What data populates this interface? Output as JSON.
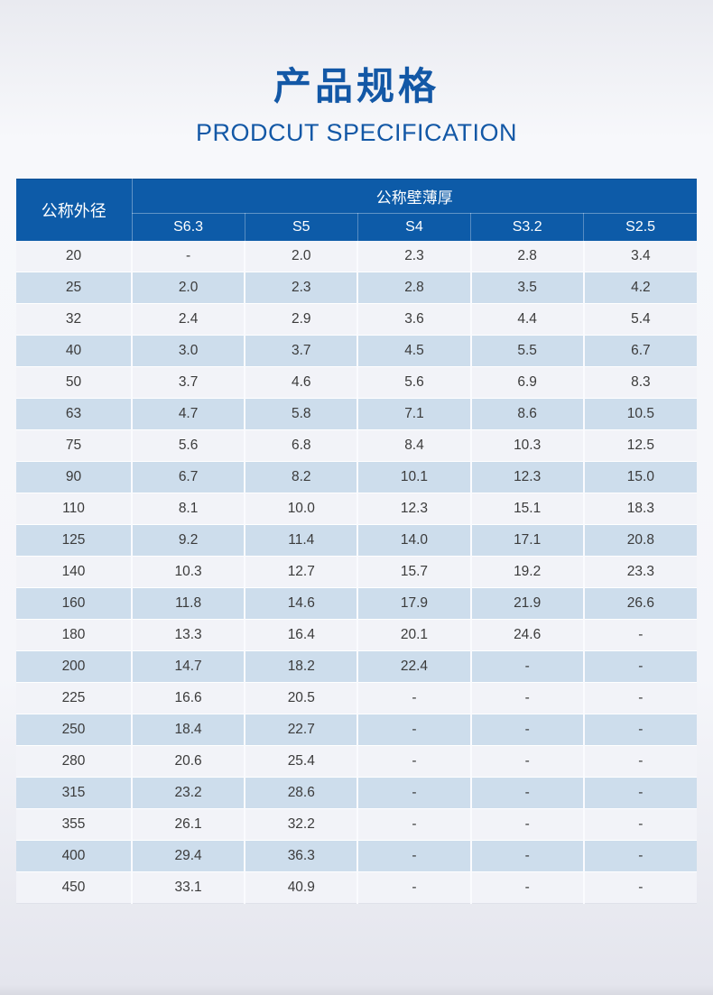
{
  "page": {
    "title": "产品规格",
    "subtitle": "PRODCUT SPECIFICATION"
  },
  "colors": {
    "title_blue": "#1358a6",
    "header_blue": "#0d5ba8",
    "header_text": "#ffffff",
    "row_light": "#f2f3f8",
    "row_alt_blue": "#cdddec",
    "cell_text": "#3b3b3b",
    "background_top": "#e9eaf0",
    "background_bottom": "#e4e5ed"
  },
  "table": {
    "corner_header": "公称外径",
    "group_header": "公称壁薄厚",
    "columns": [
      "S6.3",
      "S5",
      "S4",
      "S3.2",
      "S2.5"
    ],
    "rows": [
      {
        "diameter": "20",
        "values": [
          "-",
          "2.0",
          "2.3",
          "2.8",
          "3.4"
        ]
      },
      {
        "diameter": "25",
        "values": [
          "2.0",
          "2.3",
          "2.8",
          "3.5",
          "4.2"
        ]
      },
      {
        "diameter": "32",
        "values": [
          "2.4",
          "2.9",
          "3.6",
          "4.4",
          "5.4"
        ]
      },
      {
        "diameter": "40",
        "values": [
          "3.0",
          "3.7",
          "4.5",
          "5.5",
          "6.7"
        ]
      },
      {
        "diameter": "50",
        "values": [
          "3.7",
          "4.6",
          "5.6",
          "6.9",
          "8.3"
        ]
      },
      {
        "diameter": "63",
        "values": [
          "4.7",
          "5.8",
          "7.1",
          "8.6",
          "10.5"
        ]
      },
      {
        "diameter": "75",
        "values": [
          "5.6",
          "6.8",
          "8.4",
          "10.3",
          "12.5"
        ]
      },
      {
        "diameter": "90",
        "values": [
          "6.7",
          "8.2",
          "10.1",
          "12.3",
          "15.0"
        ]
      },
      {
        "diameter": "110",
        "values": [
          "8.1",
          "10.0",
          "12.3",
          "15.1",
          "18.3"
        ]
      },
      {
        "diameter": "125",
        "values": [
          "9.2",
          "11.4",
          "14.0",
          "17.1",
          "20.8"
        ]
      },
      {
        "diameter": "140",
        "values": [
          "10.3",
          "12.7",
          "15.7",
          "19.2",
          "23.3"
        ]
      },
      {
        "diameter": "160",
        "values": [
          "11.8",
          "14.6",
          "17.9",
          "21.9",
          "26.6"
        ]
      },
      {
        "diameter": "180",
        "values": [
          "13.3",
          "16.4",
          "20.1",
          "24.6",
          "-"
        ]
      },
      {
        "diameter": "200",
        "values": [
          "14.7",
          "18.2",
          "22.4",
          "-",
          "-"
        ]
      },
      {
        "diameter": "225",
        "values": [
          "16.6",
          "20.5",
          "-",
          "-",
          "-"
        ]
      },
      {
        "diameter": "250",
        "values": [
          "18.4",
          "22.7",
          "-",
          "-",
          "-"
        ]
      },
      {
        "diameter": "280",
        "values": [
          "20.6",
          "25.4",
          "-",
          "-",
          "-"
        ]
      },
      {
        "diameter": "315",
        "values": [
          "23.2",
          "28.6",
          "-",
          "-",
          "-"
        ]
      },
      {
        "diameter": "355",
        "values": [
          "26.1",
          "32.2",
          "-",
          "-",
          "-"
        ]
      },
      {
        "diameter": "400",
        "values": [
          "29.4",
          "36.3",
          "-",
          "-",
          "-"
        ]
      },
      {
        "diameter": "450",
        "values": [
          "33.1",
          "40.9",
          "-",
          "-",
          "-"
        ]
      }
    ]
  }
}
